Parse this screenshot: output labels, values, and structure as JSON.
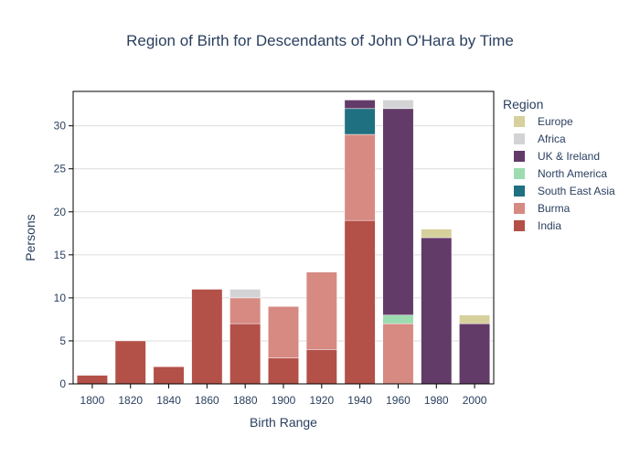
{
  "chart_data": {
    "type": "bar",
    "stacked": true,
    "title": "Region of Birth for Descendants of John O'Hara by Time",
    "xlabel": "Birth Range",
    "ylabel": "Persons",
    "categories": [
      "1800",
      "1820",
      "1840",
      "1860",
      "1880",
      "1900",
      "1920",
      "1940",
      "1960",
      "1980",
      "2000"
    ],
    "ylim": [
      0,
      34
    ],
    "yticks": [
      0,
      5,
      10,
      15,
      20,
      25,
      30
    ],
    "grid": true,
    "legend": {
      "title": "Region",
      "position": "right"
    },
    "series": [
      {
        "name": "India",
        "color": "#b35048",
        "values": [
          1,
          5,
          2,
          11,
          7,
          3,
          4,
          19,
          0,
          0,
          0
        ]
      },
      {
        "name": "Burma",
        "color": "#d68a82",
        "values": [
          0,
          0,
          0,
          0,
          3,
          6,
          9,
          10,
          7,
          0,
          0
        ]
      },
      {
        "name": "South East Asia",
        "color": "#1f7080",
        "values": [
          0,
          0,
          0,
          0,
          0,
          0,
          0,
          3,
          0,
          0,
          0
        ]
      },
      {
        "name": "North America",
        "color": "#9cdcb0",
        "values": [
          0,
          0,
          0,
          0,
          0,
          0,
          0,
          0,
          1,
          0,
          0
        ]
      },
      {
        "name": "UK & Ireland",
        "color": "#633b69",
        "values": [
          0,
          0,
          0,
          0,
          0,
          0,
          0,
          1,
          24,
          17,
          7
        ]
      },
      {
        "name": "Africa",
        "color": "#d3d3d6",
        "values": [
          0,
          0,
          0,
          0,
          1,
          0,
          0,
          0,
          1,
          0,
          0
        ]
      },
      {
        "name": "Europe",
        "color": "#d6d09c",
        "values": [
          0,
          0,
          0,
          0,
          0,
          0,
          0,
          0,
          0,
          1,
          1
        ]
      }
    ],
    "legend_order": [
      "Europe",
      "Africa",
      "UK & Ireland",
      "North America",
      "South East Asia",
      "Burma",
      "India"
    ]
  }
}
